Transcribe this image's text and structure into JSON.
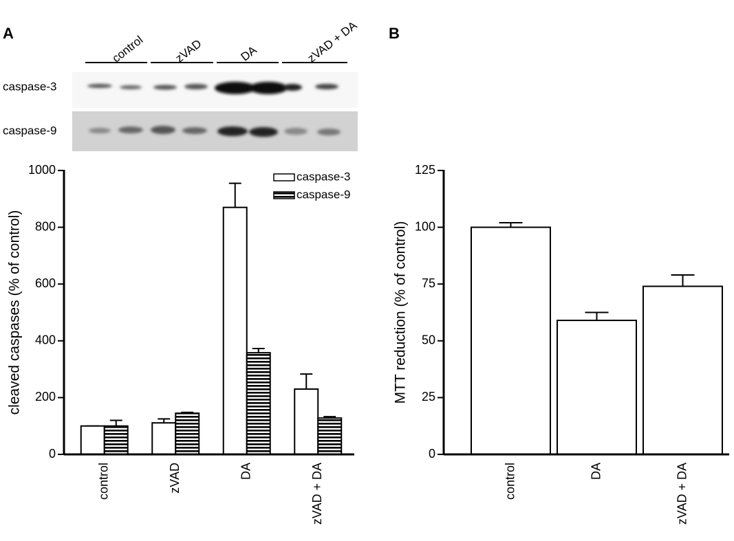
{
  "panel_labels": [
    "A",
    "B"
  ],
  "blot": {
    "lanes": [
      "control",
      "zVAD",
      "DA",
      "zVAD + DA"
    ],
    "rows": [
      "caspase-3",
      "caspase-9"
    ]
  },
  "chart_data": [
    {
      "type": "bar",
      "ylabel": "cleaved caspases (% of control)",
      "categories": [
        "control",
        "zVAD",
        "DA",
        "zVAD + DA"
      ],
      "series": [
        {
          "name": "caspase-3",
          "color": "#ffffff",
          "values": [
            100,
            111,
            870,
            230
          ],
          "errors": [
            0,
            14,
            85,
            53
          ]
        },
        {
          "name": "caspase-9",
          "color": "#000000",
          "hatch": "horizontal",
          "values": [
            100,
            145,
            358,
            128
          ],
          "errors": [
            20,
            3,
            15,
            5
          ]
        }
      ],
      "ylim": [
        0,
        1000
      ],
      "yticks": [
        0,
        200,
        400,
        600,
        800,
        1000
      ],
      "legend": "upper right"
    },
    {
      "type": "bar",
      "ylabel": "MTT reduction (% of control)",
      "categories": [
        "control",
        "DA",
        "zVAD + DA"
      ],
      "color": "#ffffff",
      "values": [
        100,
        59,
        74
      ],
      "errors": [
        2,
        3.5,
        5
      ],
      "ylim": [
        0,
        125
      ],
      "yticks": [
        0,
        25,
        50,
        75,
        100,
        125
      ]
    }
  ]
}
